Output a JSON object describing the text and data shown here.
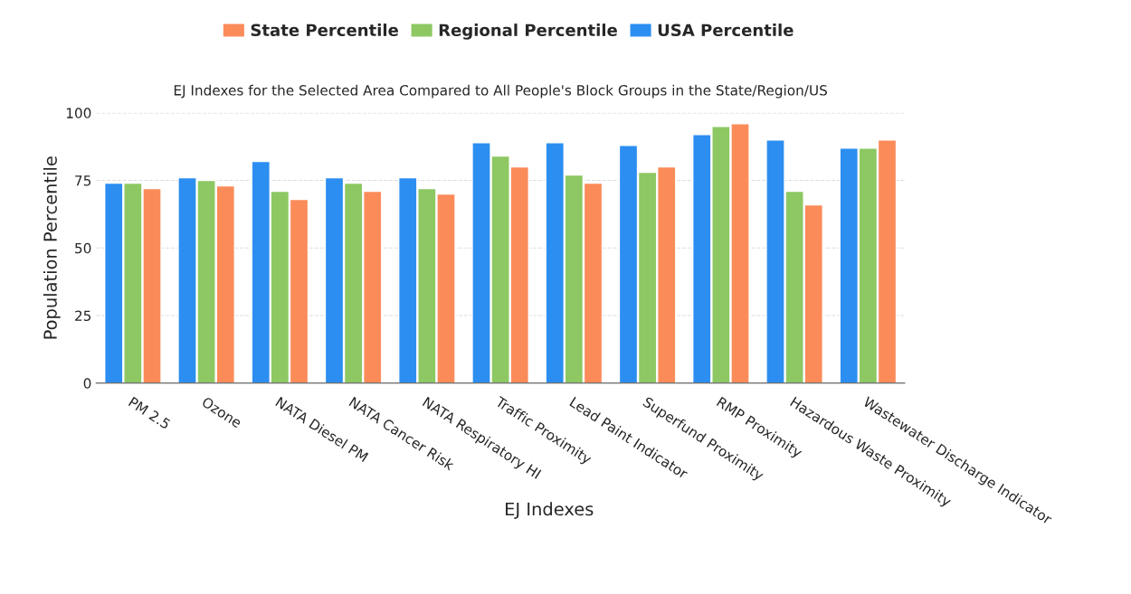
{
  "chart_data": {
    "type": "bar",
    "title": "EJ Indexes for the Selected Area Compared to All People's Block Groups in the State/Region/US",
    "xlabel": "EJ Indexes",
    "ylabel": "Population Percentile",
    "categories": [
      "PM 2.5",
      "Ozone",
      "NATA Diesel PM",
      "NATA Cancer Risk",
      "NATA Respiratory HI",
      "Traffic Proximity",
      "Lead Paint Indicator",
      "Superfund Proximity",
      "RMP Proximity",
      "Hazardous Waste Proximity",
      "Wastewater Discharge Indicator"
    ],
    "series": [
      {
        "name": "State Percentile",
        "color": "#fb8c5a",
        "values": [
          72,
          73,
          68,
          71,
          70,
          80,
          74,
          80,
          96,
          66,
          90
        ]
      },
      {
        "name": "Regional Percentile",
        "color": "#8dc863",
        "values": [
          74,
          75,
          71,
          74,
          72,
          84,
          77,
          78,
          95,
          71,
          87
        ]
      },
      {
        "name": "USA Percentile",
        "color": "#2b8ef0",
        "values": [
          74,
          76,
          82,
          76,
          76,
          89,
          89,
          88,
          92,
          90,
          87
        ]
      }
    ],
    "ylim": [
      0,
      100
    ],
    "yticks": [
      0,
      25,
      50,
      75,
      100
    ],
    "grid": "y",
    "legend": "top"
  }
}
